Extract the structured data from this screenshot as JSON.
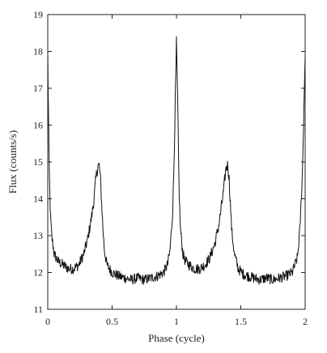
{
  "chart_data": {
    "type": "line",
    "title": "",
    "xlabel": "Phase (cycle)",
    "ylabel": "Flux (counts/s)",
    "xlim": [
      0,
      2
    ],
    "ylim": [
      11,
      19
    ],
    "xticks": [
      0,
      0.5,
      1,
      1.5,
      2
    ],
    "xtick_labels": [
      "0",
      "0.5",
      "1",
      "1.5",
      "2"
    ],
    "yticks": [
      11,
      12,
      13,
      14,
      15,
      16,
      17,
      18,
      19
    ],
    "ytick_labels": [
      "11",
      "12",
      "13",
      "14",
      "15",
      "16",
      "17",
      "18",
      "19"
    ],
    "grid": false,
    "legend": "none",
    "line_color": "#111111",
    "series": [
      {
        "x": [
          0.0,
          0.01,
          0.02,
          0.03,
          0.05,
          0.08,
          0.12,
          0.16,
          0.2,
          0.24,
          0.28,
          0.31,
          0.34,
          0.36,
          0.37,
          0.38,
          0.39,
          0.4,
          0.41,
          0.42,
          0.43,
          0.44,
          0.46,
          0.5,
          0.55,
          0.6,
          0.65,
          0.7,
          0.75,
          0.8,
          0.85,
          0.9,
          0.93,
          0.95,
          0.97,
          0.98,
          0.99,
          1.0,
          1.01,
          1.02,
          1.03,
          1.05,
          1.07,
          1.1,
          1.14,
          1.18,
          1.22,
          1.26,
          1.3,
          1.33,
          1.35,
          1.37,
          1.38,
          1.39,
          1.4,
          1.41,
          1.42,
          1.43,
          1.45,
          1.48,
          1.52,
          1.56,
          1.6,
          1.65,
          1.7,
          1.75,
          1.8,
          1.85,
          1.9,
          1.94,
          1.96,
          1.98,
          2.0
        ],
        "y": [
          18.0,
          15.0,
          13.6,
          13.0,
          12.5,
          12.3,
          12.2,
          12.1,
          12.1,
          12.2,
          12.5,
          12.9,
          13.5,
          14.0,
          14.4,
          14.7,
          14.9,
          14.9,
          14.5,
          13.8,
          13.1,
          12.6,
          12.2,
          12.0,
          11.9,
          11.85,
          11.8,
          11.85,
          11.8,
          11.85,
          11.9,
          12.0,
          12.2,
          12.6,
          13.6,
          14.8,
          16.5,
          18.2,
          16.5,
          14.3,
          13.2,
          12.5,
          12.3,
          12.2,
          12.1,
          12.1,
          12.2,
          12.4,
          12.8,
          13.3,
          13.8,
          14.3,
          14.7,
          14.9,
          14.9,
          14.5,
          13.8,
          13.1,
          12.5,
          12.1,
          11.95,
          11.9,
          11.85,
          11.8,
          11.85,
          11.8,
          11.85,
          11.9,
          12.0,
          12.4,
          13.2,
          14.8,
          18.0
        ]
      }
    ]
  }
}
